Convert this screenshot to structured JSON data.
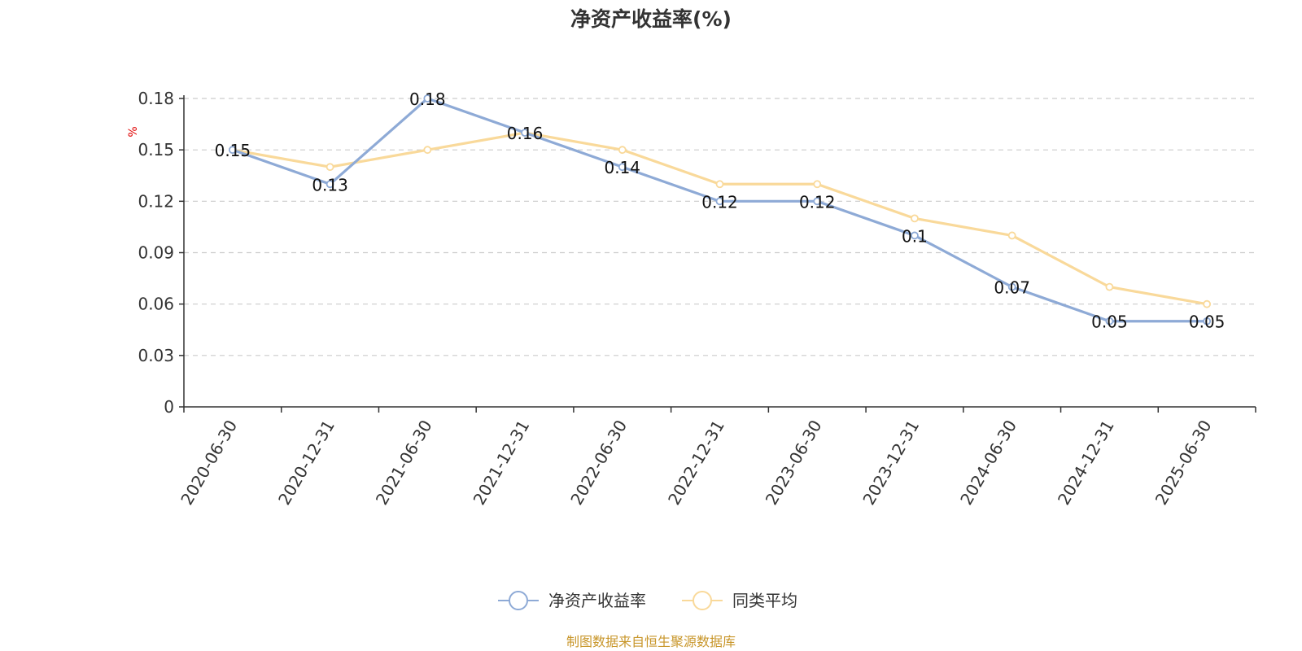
{
  "chart_data": {
    "type": "line",
    "title": "净资产收益率(%)",
    "ylabel": "%",
    "xlabel": "",
    "ylim": [
      0,
      0.18
    ],
    "yticks": [
      0,
      0.03,
      0.06,
      0.09,
      0.12,
      0.15,
      0.18
    ],
    "categories": [
      "2020-06-30",
      "2020-12-31",
      "2021-06-30",
      "2021-12-31",
      "2022-06-30",
      "2022-12-31",
      "2023-06-30",
      "2023-12-31",
      "2024-06-30",
      "2024-12-31",
      "2025-06-30"
    ],
    "series": [
      {
        "name": "净资产收益率",
        "color": "#8eaad6",
        "values": [
          0.15,
          0.13,
          0.18,
          0.16,
          0.14,
          0.12,
          0.12,
          0.1,
          0.07,
          0.05,
          0.05
        ],
        "labels": [
          "0.15",
          "0.13",
          "0.18",
          "0.16",
          "0.14",
          "0.12",
          "0.12",
          "0.1",
          "0.07",
          "0.05",
          "0.05"
        ]
      },
      {
        "name": "同类平均",
        "color": "#f9d99a",
        "values": [
          0.15,
          0.14,
          0.15,
          0.16,
          0.15,
          0.13,
          0.13,
          0.11,
          0.1,
          0.07,
          0.06
        ]
      }
    ],
    "grid": true,
    "legend_position": "bottom-center",
    "source": "制图数据来自恒生聚源数据库"
  }
}
